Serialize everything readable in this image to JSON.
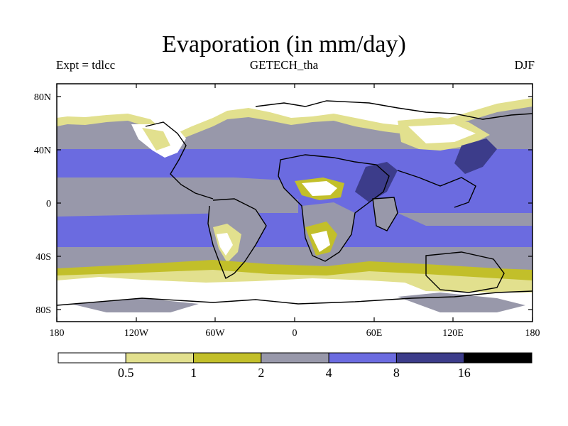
{
  "header": {
    "title": "Evaporation (in mm/day)",
    "left": "Expt = tdlcc",
    "center": "GETECH_tha",
    "right": "DJF"
  },
  "map": {
    "lon_labels": [
      "180",
      "120W",
      "60W",
      "0",
      "60E",
      "120E",
      "180"
    ],
    "lat_labels": [
      "80N",
      "40N",
      "0",
      "40S",
      "80S"
    ]
  },
  "colorbar": {
    "labels": [
      "0.5",
      "1",
      "2",
      "4",
      "8",
      "16"
    ],
    "colors": [
      "#ffffff",
      "#e2e08e",
      "#c2bf2a",
      "#9898aa",
      "#6b6be0",
      "#3c3c8a",
      "#000000"
    ]
  }
}
